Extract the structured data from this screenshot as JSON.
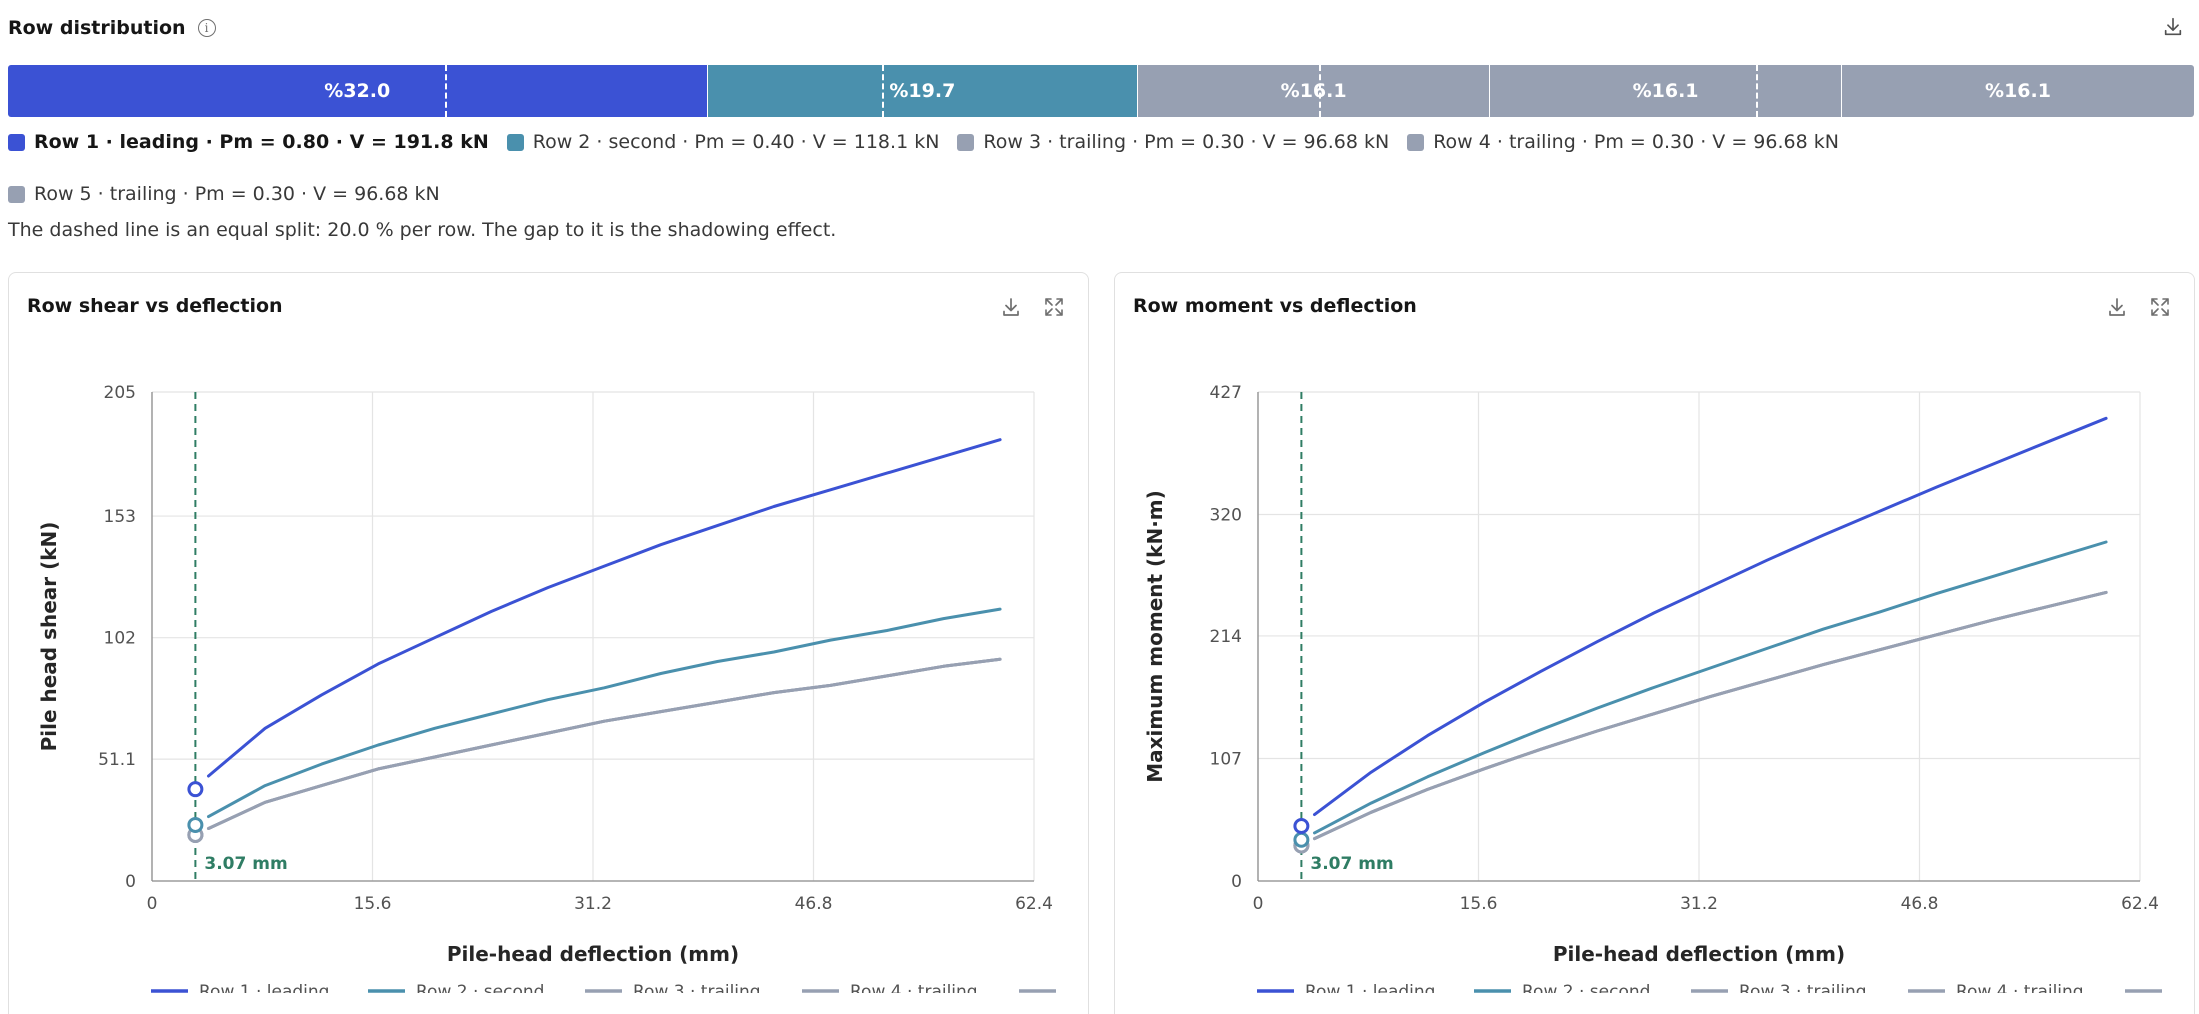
{
  "header": {
    "title": "Row distribution",
    "info_icon": "info-icon",
    "download_icon": "download-icon"
  },
  "distribution": {
    "segments": [
      {
        "label": "%32.0",
        "value": 32.0,
        "color": "#3b52d4"
      },
      {
        "label": "%19.7",
        "value": 19.7,
        "color": "#4a90ad"
      },
      {
        "label": "%16.1",
        "value": 16.1,
        "color": "#97a0b2"
      },
      {
        "label": "%16.1",
        "value": 16.1,
        "color": "#97a0b2"
      },
      {
        "label": "%16.1",
        "value": 16.1,
        "color": "#97a0b2"
      }
    ],
    "equal_split_percent": 20.0,
    "legend": [
      {
        "label": "Row 1 · leading · Pm = 0.80 · V = 191.8 kN",
        "color": "#3b52d4",
        "bold": true
      },
      {
        "label": "Row 2 · second · Pm = 0.40 · V = 118.1 kN",
        "color": "#4a90ad",
        "bold": false
      },
      {
        "label": "Row 3 · trailing · Pm = 0.30 · V = 96.68 kN",
        "color": "#97a0b2",
        "bold": false
      },
      {
        "label": "Row 4 · trailing · Pm = 0.30 · V = 96.68 kN",
        "color": "#97a0b2",
        "bold": false
      },
      {
        "label": "Row 5 · trailing · Pm = 0.30 · V = 96.68 kN",
        "color": "#97a0b2",
        "bold": false
      }
    ],
    "note": "The dashed line is an equal split: 20.0 % per row. The gap to it is the shadowing effect."
  },
  "cards": {
    "shear": {
      "title": "Row shear vs deflection",
      "download_icon": "download-icon",
      "expand_icon": "expand-icon"
    },
    "moment": {
      "title": "Row moment vs deflection",
      "download_icon": "download-icon",
      "expand_icon": "expand-icon"
    }
  },
  "chart_data": [
    {
      "type": "line",
      "title": "Row shear vs deflection",
      "xlabel": "Pile-head deflection (mm)",
      "ylabel": "Pile head shear (kN)",
      "xlim": [
        0,
        62.4
      ],
      "ylim": [
        0,
        205
      ],
      "xticks": [
        "0",
        "15.6",
        "31.2",
        "46.8",
        "62.4"
      ],
      "yticks": [
        "0",
        "51.1",
        "102",
        "153",
        "205"
      ],
      "xtick_values": [
        0,
        15.6,
        31.2,
        46.8,
        62.4
      ],
      "ytick_values": [
        0,
        51.1,
        102,
        153,
        205
      ],
      "grid": true,
      "legend_position": "bottom",
      "marker_line": {
        "x": 3.07,
        "label": "3.07 mm",
        "color": "#2f7d64"
      },
      "series": [
        {
          "name": "Row 1 · leading",
          "color": "#3b52d4",
          "x": [
            4,
            8,
            12,
            16,
            20,
            24,
            28,
            32,
            36,
            40,
            44,
            48,
            52,
            56,
            60
          ],
          "y": [
            44,
            64,
            78,
            91,
            102,
            113,
            123,
            132,
            141,
            149,
            157,
            164,
            171,
            178,
            185
          ],
          "marker": {
            "x": 3.07,
            "y": 38.5
          }
        },
        {
          "name": "Row 2 · second",
          "color": "#4a90ad",
          "x": [
            4,
            8,
            12,
            16,
            20,
            24,
            28,
            32,
            36,
            40,
            44,
            48,
            52,
            56,
            60
          ],
          "y": [
            27,
            40,
            49,
            57,
            64,
            70,
            76,
            81,
            87,
            92,
            96,
            101,
            105,
            110,
            114
          ],
          "marker": {
            "x": 3.07,
            "y": 23.5
          }
        },
        {
          "name": "Row 3 · trailing",
          "color": "#97a0b2",
          "x": [
            4,
            8,
            12,
            16,
            20,
            24,
            28,
            32,
            36,
            40,
            44,
            48,
            52,
            56,
            60
          ],
          "y": [
            22,
            33,
            40,
            47,
            52,
            57,
            62,
            67,
            71,
            75,
            79,
            82,
            86,
            90,
            93
          ],
          "marker": {
            "x": 3.07,
            "y": 19.3
          }
        },
        {
          "name": "Row 4 · trailing",
          "color": "#97a0b2",
          "x": [
            4,
            8,
            12,
            16,
            20,
            24,
            28,
            32,
            36,
            40,
            44,
            48,
            52,
            56,
            60
          ],
          "y": [
            22,
            33,
            40,
            47,
            52,
            57,
            62,
            67,
            71,
            75,
            79,
            82,
            86,
            90,
            93
          ],
          "marker": {
            "x": 3.07,
            "y": 19.3
          }
        },
        {
          "name": "",
          "color": "#97a0b2",
          "x": [
            4,
            8,
            12,
            16,
            20,
            24,
            28,
            32,
            36,
            40,
            44,
            48,
            52,
            56,
            60
          ],
          "y": [
            22,
            33,
            40,
            47,
            52,
            57,
            62,
            67,
            71,
            75,
            79,
            82,
            86,
            90,
            93
          ],
          "marker": {
            "x": 3.07,
            "y": 19.3
          }
        }
      ]
    },
    {
      "type": "line",
      "title": "Row moment vs deflection",
      "xlabel": "Pile-head deflection (mm)",
      "ylabel": "Maximum moment (kN·m)",
      "xlim": [
        0,
        62.4
      ],
      "ylim": [
        0,
        427
      ],
      "xticks": [
        "0",
        "15.6",
        "31.2",
        "46.8",
        "62.4"
      ],
      "yticks": [
        "0",
        "107",
        "214",
        "320",
        "427"
      ],
      "xtick_values": [
        0,
        15.6,
        31.2,
        46.8,
        62.4
      ],
      "ytick_values": [
        0,
        107,
        214,
        320,
        427
      ],
      "grid": true,
      "legend_position": "bottom",
      "marker_line": {
        "x": 3.07,
        "label": "3.07 mm",
        "color": "#2f7d64"
      },
      "series": [
        {
          "name": "Row 1 · leading",
          "color": "#3b52d4",
          "x": [
            4,
            8,
            12,
            16,
            20,
            24,
            28,
            32,
            36,
            40,
            44,
            48,
            52,
            56,
            60
          ],
          "y": [
            58,
            95,
            127,
            156,
            183,
            209,
            234,
            257,
            280,
            302,
            323,
            344,
            364,
            384,
            404
          ],
          "marker": {
            "x": 3.07,
            "y": 48
          }
        },
        {
          "name": "Row 2 · second",
          "color": "#4a90ad",
          "x": [
            4,
            8,
            12,
            16,
            20,
            24,
            28,
            32,
            36,
            40,
            44,
            48,
            52,
            56,
            60
          ],
          "y": [
            42,
            68,
            91,
            112,
            132,
            151,
            169,
            186,
            203,
            220,
            235,
            251,
            266,
            281,
            296
          ],
          "marker": {
            "x": 3.07,
            "y": 36
          }
        },
        {
          "name": "Row 3 · trailing",
          "color": "#97a0b2",
          "x": [
            4,
            8,
            12,
            16,
            20,
            24,
            28,
            32,
            36,
            40,
            44,
            48,
            52,
            56,
            60
          ],
          "y": [
            37,
            60,
            80,
            98,
            115,
            131,
            146,
            161,
            175,
            189,
            202,
            215,
            228,
            240,
            252
          ],
          "marker": {
            "x": 3.07,
            "y": 31
          }
        },
        {
          "name": "Row 4 · trailing",
          "color": "#97a0b2",
          "x": [
            4,
            8,
            12,
            16,
            20,
            24,
            28,
            32,
            36,
            40,
            44,
            48,
            52,
            56,
            60
          ],
          "y": [
            37,
            60,
            80,
            98,
            115,
            131,
            146,
            161,
            175,
            189,
            202,
            215,
            228,
            240,
            252
          ],
          "marker": {
            "x": 3.07,
            "y": 31
          }
        },
        {
          "name": "",
          "color": "#97a0b2",
          "x": [
            4,
            8,
            12,
            16,
            20,
            24,
            28,
            32,
            36,
            40,
            44,
            48,
            52,
            56,
            60
          ],
          "y": [
            37,
            60,
            80,
            98,
            115,
            131,
            146,
            161,
            175,
            189,
            202,
            215,
            228,
            240,
            252
          ],
          "marker": {
            "x": 3.07,
            "y": 31
          }
        }
      ]
    }
  ]
}
